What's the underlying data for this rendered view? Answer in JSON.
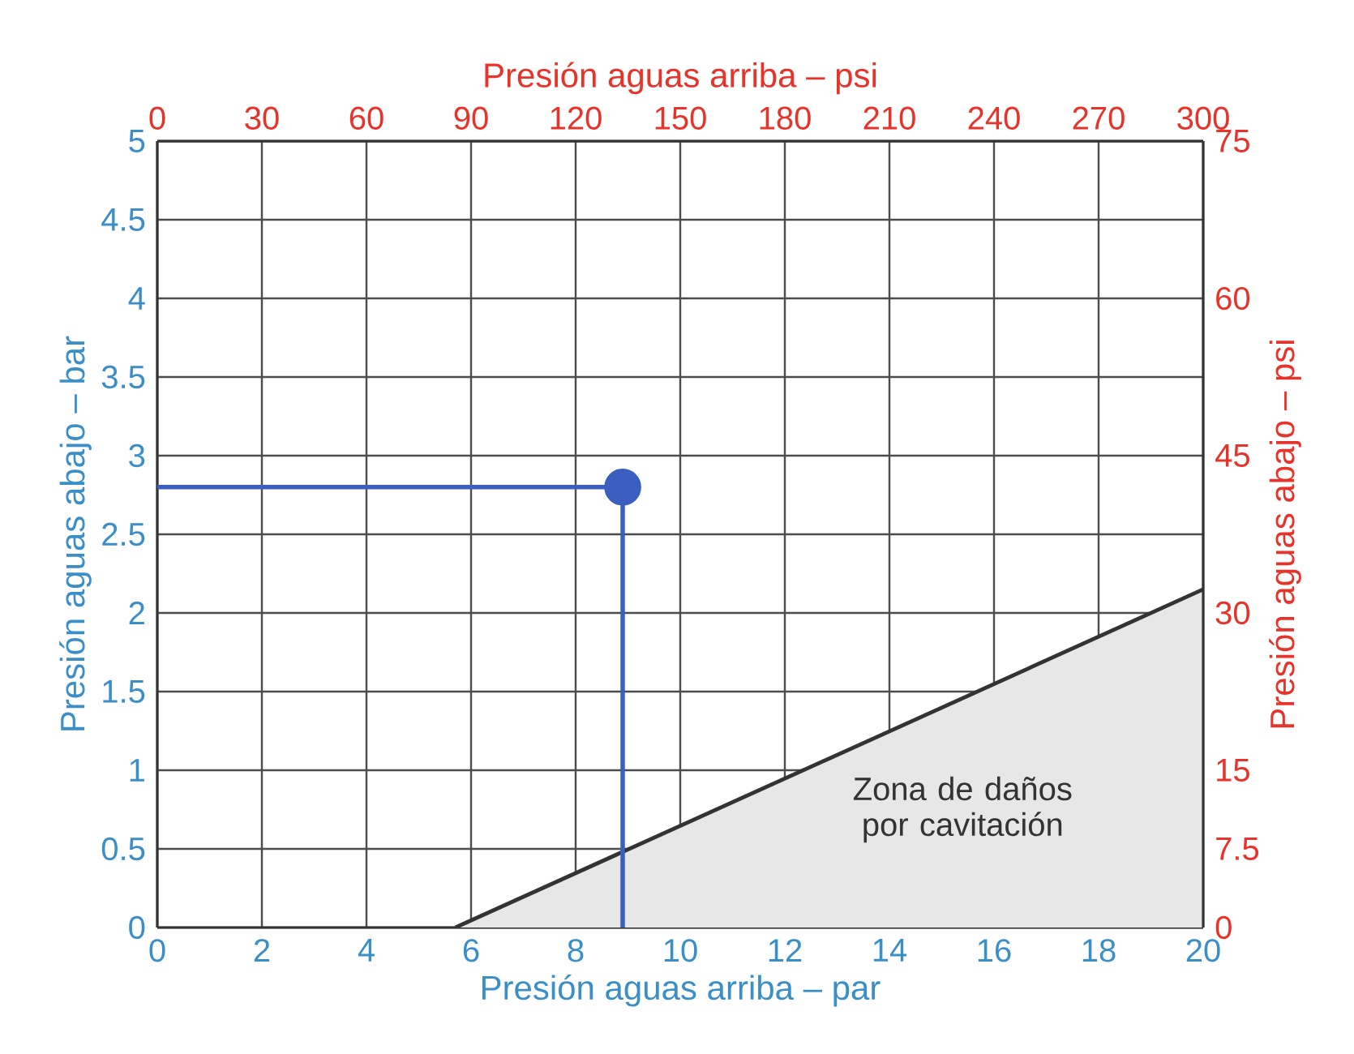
{
  "chart_data": {
    "type": "line",
    "xlabel": "Presión aguas arriba  – par",
    "ylabel": "Presión aguas abajo – bar",
    "x2label": "Presión aguas arriba  – psi",
    "y2label": "Presión aguas abajo – psi",
    "xlim": [
      0,
      20
    ],
    "xticks": [
      0,
      2,
      4,
      6,
      8,
      10,
      12,
      14,
      16,
      18,
      20
    ],
    "ylim": [
      0,
      5
    ],
    "yticks": [
      0,
      0.5,
      1,
      1.5,
      2,
      2.5,
      3,
      3.5,
      4,
      4.5,
      5
    ],
    "x2lim": [
      0,
      300
    ],
    "x2ticks": [
      0,
      30,
      60,
      90,
      120,
      150,
      180,
      210,
      240,
      270,
      300
    ],
    "y2lim": [
      0,
      75
    ],
    "y2ticks": [
      0,
      7.5,
      15,
      30,
      45,
      60,
      75
    ],
    "grid": true,
    "series": [
      {
        "type": "area",
        "color": "#e7e7e7",
        "x": [
          5.7,
          20
        ],
        "values": [
          0,
          2.15
        ],
        "marker": "none"
      },
      {
        "color": "#3b5fc0",
        "x": [
          0,
          8.9,
          8.9
        ],
        "values": [
          2.8,
          2.8,
          0
        ],
        "marker": "none"
      },
      {
        "type": "scatter",
        "color": "#3b5fc0",
        "x": [
          8.9
        ],
        "values": [
          2.8
        ],
        "marker": "circle"
      }
    ],
    "annotations": [
      "Zona de daños por cavitación"
    ]
  }
}
